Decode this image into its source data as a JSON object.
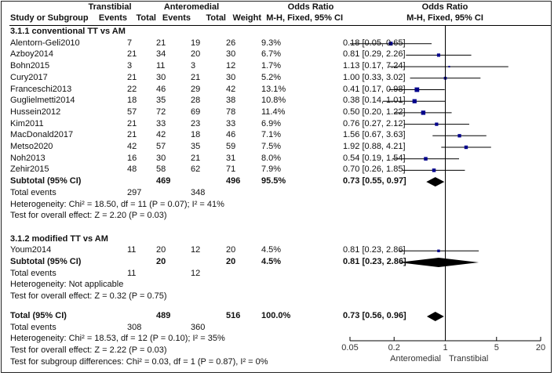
{
  "chart_data": {
    "type": "forest",
    "header": {
      "group1": "Transtibial",
      "group2": "Anteromedial",
      "or_header": "Odds Ratio",
      "plot_header": "Odds Ratio",
      "columns": [
        "Study or Subgroup",
        "Events",
        "Total",
        "Events",
        "Total",
        "Weight",
        "M-H, Fixed, 95% CI"
      ],
      "plot_subheader": "M-H, Fixed, 95% CI"
    },
    "subgroups": [
      {
        "title": "3.1.1 conventional TT vs AM",
        "studies": [
          {
            "name": "Alentorn-Geli2010",
            "e1": 7,
            "t1": 21,
            "e2": 19,
            "t2": 26,
            "weight": "9.3%",
            "ci": "0.18 [0.05, 0.65]",
            "or": 0.18,
            "lo": 0.05,
            "hi": 0.65
          },
          {
            "name": "Azboy2014",
            "e1": 21,
            "t1": 34,
            "e2": 20,
            "t2": 30,
            "weight": "6.7%",
            "ci": "0.81 [0.29, 2.26]",
            "or": 0.81,
            "lo": 0.29,
            "hi": 2.26
          },
          {
            "name": "Bohn2015",
            "e1": 3,
            "t1": 11,
            "e2": 3,
            "t2": 12,
            "weight": "1.7%",
            "ci": "1.13 [0.17, 7.24]",
            "or": 1.13,
            "lo": 0.17,
            "hi": 7.24
          },
          {
            "name": "Cury2017",
            "e1": 21,
            "t1": 30,
            "e2": 21,
            "t2": 30,
            "weight": "5.2%",
            "ci": "1.00 [0.33, 3.02]",
            "or": 1.0,
            "lo": 0.33,
            "hi": 3.02
          },
          {
            "name": "Franceschi2013",
            "e1": 22,
            "t1": 46,
            "e2": 29,
            "t2": 42,
            "weight": "13.1%",
            "ci": "0.41 [0.17, 0.98]",
            "or": 0.41,
            "lo": 0.17,
            "hi": 0.98
          },
          {
            "name": "Guglielmetti2014",
            "e1": 18,
            "t1": 35,
            "e2": 28,
            "t2": 38,
            "weight": "10.8%",
            "ci": "0.38 [0.14, 1.01]",
            "or": 0.38,
            "lo": 0.14,
            "hi": 1.01
          },
          {
            "name": "Hussein2012",
            "e1": 57,
            "t1": 72,
            "e2": 69,
            "t2": 78,
            "weight": "11.4%",
            "ci": "0.50 [0.20, 1.22]",
            "or": 0.5,
            "lo": 0.2,
            "hi": 1.22
          },
          {
            "name": "Kim2011",
            "e1": 21,
            "t1": 33,
            "e2": 23,
            "t2": 33,
            "weight": "6.9%",
            "ci": "0.76 [0.27, 2.12]",
            "or": 0.76,
            "lo": 0.27,
            "hi": 2.12
          },
          {
            "name": "MacDonald2017",
            "e1": 21,
            "t1": 42,
            "e2": 18,
            "t2": 46,
            "weight": "7.1%",
            "ci": "1.56 [0.67, 3.63]",
            "or": 1.56,
            "lo": 0.67,
            "hi": 3.63
          },
          {
            "name": "Metso2020",
            "e1": 42,
            "t1": 57,
            "e2": 35,
            "t2": 59,
            "weight": "7.5%",
            "ci": "1.92 [0.88, 4.21]",
            "or": 1.92,
            "lo": 0.88,
            "hi": 4.21
          },
          {
            "name": "Noh2013",
            "e1": 16,
            "t1": 30,
            "e2": 21,
            "t2": 31,
            "weight": "8.0%",
            "ci": "0.54 [0.19, 1.54]",
            "or": 0.54,
            "lo": 0.19,
            "hi": 1.54
          },
          {
            "name": "Zehir2015",
            "e1": 48,
            "t1": 58,
            "e2": 62,
            "t2": 71,
            "weight": "7.9%",
            "ci": "0.70 [0.26, 1.85]",
            "or": 0.7,
            "lo": 0.26,
            "hi": 1.85
          }
        ],
        "subtotal": {
          "label": "Subtotal (95% CI)",
          "t1": 469,
          "t2": 496,
          "weight": "95.5%",
          "ci": "0.73 [0.55, 0.97]",
          "or": 0.73,
          "lo": 0.55,
          "hi": 0.97
        },
        "total_events": {
          "label": "Total events",
          "e1": 297,
          "e2": 348
        },
        "heterogeneity": "Heterogeneity: Chi² = 18.50, df = 11 (P = 0.07); I² = 41%",
        "overall_effect": "Test for overall effect: Z = 2.20 (P = 0.03)"
      },
      {
        "title": "3.1.2 modified TT vs AM",
        "studies": [
          {
            "name": "Youm2014",
            "e1": 11,
            "t1": 20,
            "e2": 12,
            "t2": 20,
            "weight": "4.5%",
            "ci": "0.81 [0.23, 2.86]",
            "or": 0.81,
            "lo": 0.23,
            "hi": 2.86
          }
        ],
        "subtotal": {
          "label": "Subtotal (95% CI)",
          "t1": 20,
          "t2": 20,
          "weight": "4.5%",
          "ci": "0.81 [0.23, 2.86]",
          "or": 0.81,
          "lo": 0.23,
          "hi": 2.86
        },
        "total_events": {
          "label": "Total events",
          "e1": 11,
          "e2": 12
        },
        "heterogeneity": "Heterogeneity: Not applicable",
        "overall_effect": "Test for overall effect: Z = 0.32 (P = 0.75)"
      }
    ],
    "total": {
      "label": "Total (95% CI)",
      "t1": 489,
      "t2": 516,
      "weight": "100.0%",
      "ci": "0.73 [0.56, 0.96]",
      "or": 0.73,
      "lo": 0.56,
      "hi": 0.96
    },
    "total_events": {
      "label": "Total events",
      "e1": 308,
      "e2": 360
    },
    "heterogeneity": "Heterogeneity: Chi² = 18.53, df = 12 (P = 0.10); I² = 35%",
    "overall_effect": "Test for overall effect: Z = 2.22 (P = 0.03)",
    "subgroup_diff": "Test for subgroup differences: Chi² = 0.03, df = 1 (P = 0.87), I² = 0%",
    "x_axis": {
      "scale": "log",
      "range": [
        0.05,
        20
      ],
      "ticks": [
        0.05,
        0.2,
        1,
        5,
        20
      ],
      "tick_labels": [
        "0.05",
        "0.2",
        "1",
        "5",
        "20"
      ]
    },
    "favours_left": "Anteromedial",
    "favours_right": "Transtibial",
    "colors": {
      "box": "#00008b",
      "line": "#000000",
      "diamond": "#000000"
    }
  }
}
